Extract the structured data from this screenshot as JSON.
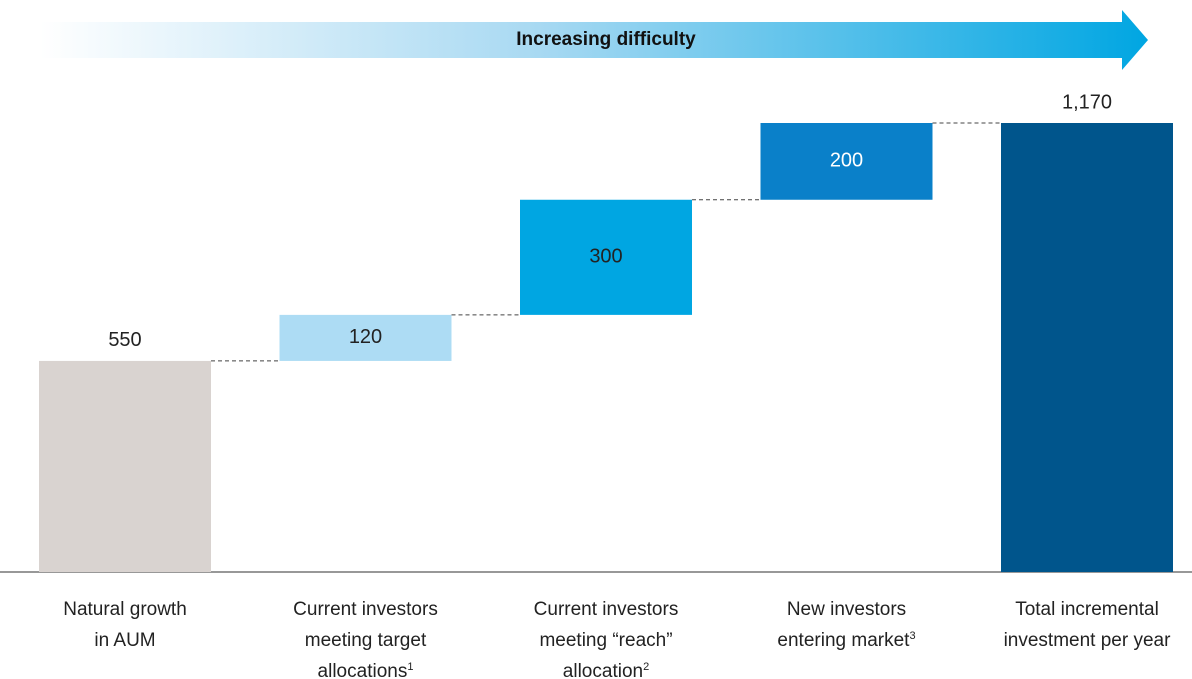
{
  "chart_data": {
    "type": "waterfall",
    "banner": "Increasing difficulty",
    "categories": [
      [
        "Natural growth",
        "in AUM"
      ],
      [
        "Current investors",
        "meeting target",
        "allocations"
      ],
      [
        "Current investors",
        "meeting “reach”",
        "allocation"
      ],
      [
        "New investors",
        "entering market"
      ],
      [
        "Total incremental",
        "investment per year"
      ]
    ],
    "category_notes": [
      null,
      "1",
      "2",
      "3",
      null
    ],
    "measures": [
      "relative",
      "relative",
      "relative",
      "relative",
      "total"
    ],
    "values": [
      550,
      120,
      300,
      200,
      1170
    ],
    "value_labels": [
      "550",
      "120",
      "300",
      "200",
      "1,170"
    ],
    "colors": [
      "#d9d3d0",
      "#addcf4",
      "#00a6e2",
      "#0a80c9",
      "#00558c"
    ],
    "label_colors": [
      "#222222",
      "#222222",
      "#222222",
      "#ffffff",
      "#222222"
    ]
  }
}
